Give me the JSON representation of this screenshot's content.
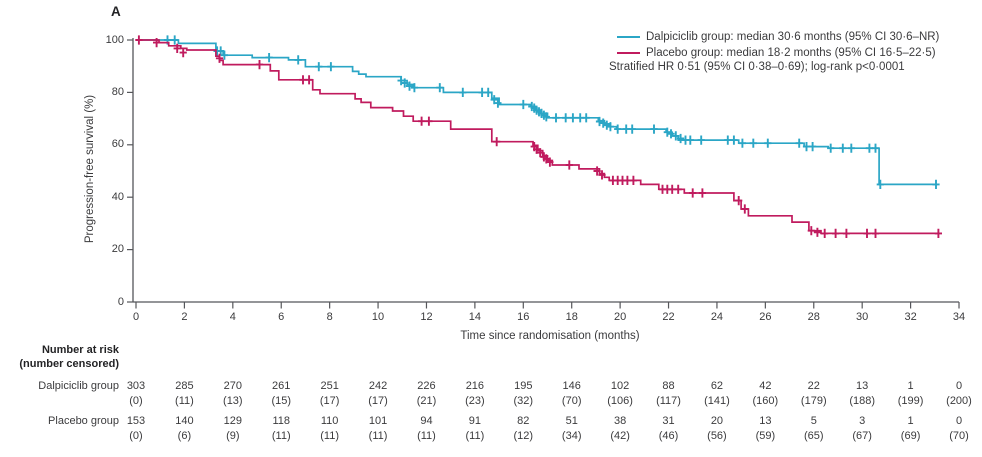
{
  "panel_label": "A",
  "figure": {
    "background": "#ffffff",
    "text_color": "#3b3b3d",
    "axis_color": "#55565a"
  },
  "legend": {
    "entries": [
      {
        "label": "Dalpiciclib group: median 30·6 months (95% CI 30·6–NR)",
        "color": "#2ba6c6"
      },
      {
        "label": "Placebo group: median 18·2 months (95% CI 16·5–22·5)",
        "color": "#c01b5e"
      }
    ],
    "note": "Stratified HR 0·51 (95% CI 0·38–0·69); log-rank p<0·0001"
  },
  "chart_data": {
    "type": "line",
    "subtype": "kaplan-meier-step",
    "title": "",
    "xlabel": "Time since randomisation (months)",
    "ylabel": "Progression-free survival (%)",
    "xlim": [
      0,
      34
    ],
    "ylim": [
      0,
      100
    ],
    "x_ticks": [
      0,
      2,
      4,
      6,
      8,
      10,
      12,
      14,
      16,
      18,
      20,
      22,
      24,
      26,
      28,
      30,
      32,
      34
    ],
    "y_ticks": [
      0,
      20,
      40,
      60,
      80,
      100
    ],
    "grid": false,
    "legend_position": "top-right",
    "series": [
      {
        "name": "Dalpiciclib group",
        "color": "#2ba6c6",
        "steps": [
          [
            0,
            100
          ],
          [
            1.75,
            98.7
          ],
          [
            3.3,
            95.8
          ],
          [
            3.6,
            94.2
          ],
          [
            4.8,
            93.3
          ],
          [
            6.3,
            92.4
          ],
          [
            7.0,
            89.8
          ],
          [
            8.95,
            88.0
          ],
          [
            9.2,
            87.0
          ],
          [
            9.5,
            86.0
          ],
          [
            10.95,
            84.5
          ],
          [
            11.2,
            83.0
          ],
          [
            11.45,
            81.8
          ],
          [
            12.7,
            80.0
          ],
          [
            14.7,
            77.8
          ],
          [
            15.0,
            75.4
          ],
          [
            16.3,
            74.6
          ],
          [
            16.5,
            73.2
          ],
          [
            16.7,
            72.0
          ],
          [
            17.0,
            70.3
          ],
          [
            19.1,
            69.2
          ],
          [
            19.35,
            68.0
          ],
          [
            19.6,
            66.9
          ],
          [
            19.85,
            66.0
          ],
          [
            21.9,
            64.8
          ],
          [
            22.15,
            63.4
          ],
          [
            22.4,
            61.8
          ],
          [
            24.9,
            60.6
          ],
          [
            27.6,
            59.3
          ],
          [
            28.6,
            58.7
          ],
          [
            30.7,
            44.9
          ]
        ],
        "end_time": 33.1,
        "censor_marks": [
          [
            1.3,
            100
          ],
          [
            1.6,
            100
          ],
          [
            3.35,
            95.8
          ],
          [
            3.5,
            95.8
          ],
          [
            3.65,
            94.2
          ],
          [
            5.5,
            93.3
          ],
          [
            6.7,
            92.4
          ],
          [
            7.55,
            89.8
          ],
          [
            8.05,
            89.8
          ],
          [
            10.95,
            84.5
          ],
          [
            11.1,
            83.6
          ],
          [
            11.3,
            82.4
          ],
          [
            11.5,
            81.8
          ],
          [
            12.55,
            81.8
          ],
          [
            13.5,
            80.0
          ],
          [
            14.3,
            80.0
          ],
          [
            14.55,
            80.0
          ],
          [
            14.8,
            77.2
          ],
          [
            14.95,
            75.9
          ],
          [
            16.0,
            75.4
          ],
          [
            16.35,
            74.6
          ],
          [
            16.45,
            74.0
          ],
          [
            16.55,
            73.2
          ],
          [
            16.65,
            72.6
          ],
          [
            16.75,
            72.0
          ],
          [
            16.85,
            71.3
          ],
          [
            16.95,
            70.7
          ],
          [
            17.35,
            70.3
          ],
          [
            17.75,
            70.3
          ],
          [
            18.05,
            70.3
          ],
          [
            18.35,
            70.3
          ],
          [
            18.6,
            70.3
          ],
          [
            19.15,
            68.9
          ],
          [
            19.3,
            68.3
          ],
          [
            19.45,
            67.5
          ],
          [
            19.6,
            66.9
          ],
          [
            19.9,
            66.0
          ],
          [
            20.25,
            66.0
          ],
          [
            20.5,
            66.0
          ],
          [
            21.4,
            66.0
          ],
          [
            21.95,
            64.8
          ],
          [
            22.1,
            64.2
          ],
          [
            22.3,
            63.4
          ],
          [
            22.5,
            62.4
          ],
          [
            22.7,
            61.8
          ],
          [
            22.9,
            61.8
          ],
          [
            23.35,
            61.8
          ],
          [
            24.45,
            61.8
          ],
          [
            24.7,
            61.8
          ],
          [
            25.05,
            60.6
          ],
          [
            25.5,
            60.6
          ],
          [
            26.1,
            60.6
          ],
          [
            27.4,
            60.6
          ],
          [
            27.7,
            59.3
          ],
          [
            27.95,
            59.3
          ],
          [
            28.7,
            58.7
          ],
          [
            29.2,
            58.7
          ],
          [
            29.55,
            58.7
          ],
          [
            30.3,
            58.7
          ],
          [
            30.55,
            58.7
          ],
          [
            30.75,
            44.9
          ],
          [
            33.05,
            44.9
          ]
        ]
      },
      {
        "name": "Placebo group",
        "color": "#c01b5e",
        "steps": [
          [
            0,
            100
          ],
          [
            0.95,
            99.0
          ],
          [
            1.35,
            97.8
          ],
          [
            1.85,
            96.8
          ],
          [
            2.1,
            96.2
          ],
          [
            3.3,
            93.8
          ],
          [
            3.45,
            92.2
          ],
          [
            3.6,
            90.6
          ],
          [
            5.55,
            88.2
          ],
          [
            5.9,
            84.8
          ],
          [
            7.3,
            81.0
          ],
          [
            7.6,
            79.5
          ],
          [
            9.05,
            77.5
          ],
          [
            9.3,
            76.2
          ],
          [
            9.7,
            74.2
          ],
          [
            10.6,
            72.9
          ],
          [
            11.05,
            70.9
          ],
          [
            11.45,
            69.0
          ],
          [
            13.0,
            66.0
          ],
          [
            14.7,
            61.2
          ],
          [
            16.4,
            59.8
          ],
          [
            16.6,
            57.8
          ],
          [
            16.8,
            55.8
          ],
          [
            17.0,
            54.0
          ],
          [
            17.2,
            52.3
          ],
          [
            18.3,
            50.8
          ],
          [
            19.15,
            49.0
          ],
          [
            19.35,
            47.6
          ],
          [
            19.55,
            46.4
          ],
          [
            20.85,
            44.9
          ],
          [
            21.6,
            43.0
          ],
          [
            22.65,
            41.6
          ],
          [
            24.7,
            38.7
          ],
          [
            25.0,
            35.5
          ],
          [
            25.3,
            32.9
          ],
          [
            27.1,
            30.5
          ],
          [
            27.8,
            27.2
          ],
          [
            28.3,
            26.2
          ]
        ],
        "end_time": 33.2,
        "censor_marks": [
          [
            0.12,
            100
          ],
          [
            0.85,
            99.0
          ],
          [
            1.7,
            96.8
          ],
          [
            1.95,
            95.2
          ],
          [
            3.45,
            93.0
          ],
          [
            5.1,
            90.6
          ],
          [
            6.9,
            84.8
          ],
          [
            7.15,
            84.8
          ],
          [
            11.8,
            69.0
          ],
          [
            12.1,
            69.0
          ],
          [
            14.9,
            61.2
          ],
          [
            16.45,
            59.3
          ],
          [
            16.55,
            58.3
          ],
          [
            16.7,
            57.0
          ],
          [
            16.85,
            55.4
          ],
          [
            16.95,
            54.6
          ],
          [
            17.1,
            53.4
          ],
          [
            17.9,
            52.3
          ],
          [
            19.05,
            50.0
          ],
          [
            19.25,
            48.5
          ],
          [
            19.7,
            46.4
          ],
          [
            19.9,
            46.4
          ],
          [
            20.1,
            46.4
          ],
          [
            20.3,
            46.4
          ],
          [
            20.55,
            46.4
          ],
          [
            21.75,
            43.0
          ],
          [
            21.95,
            43.0
          ],
          [
            22.15,
            43.0
          ],
          [
            22.4,
            43.0
          ],
          [
            23.0,
            41.6
          ],
          [
            23.4,
            41.6
          ],
          [
            24.9,
            38.7
          ],
          [
            25.15,
            35.5
          ],
          [
            27.9,
            27.2
          ],
          [
            28.15,
            26.6
          ],
          [
            28.45,
            26.2
          ],
          [
            28.9,
            26.2
          ],
          [
            29.35,
            26.2
          ],
          [
            30.2,
            26.2
          ],
          [
            30.55,
            26.2
          ],
          [
            33.15,
            26.2
          ]
        ]
      }
    ],
    "risk_table": {
      "header": [
        "Number at risk",
        "(number censored)"
      ],
      "timepoints": [
        0,
        2,
        4,
        6,
        8,
        10,
        12,
        14,
        16,
        18,
        20,
        22,
        24,
        26,
        28,
        30,
        32,
        34
      ],
      "rows": [
        {
          "label": "Dalpiciclib group",
          "at_risk": [
            303,
            285,
            270,
            261,
            251,
            242,
            226,
            216,
            195,
            146,
            102,
            88,
            62,
            42,
            22,
            13,
            1,
            0
          ],
          "censored": [
            "(0)",
            "(11)",
            "(13)",
            "(15)",
            "(17)",
            "(17)",
            "(21)",
            "(23)",
            "(32)",
            "(70)",
            "(106)",
            "(117)",
            "(141)",
            "(160)",
            "(179)",
            "(188)",
            "(199)",
            "(200)"
          ]
        },
        {
          "label": "Placebo group",
          "at_risk": [
            153,
            140,
            129,
            118,
            110,
            101,
            94,
            91,
            82,
            51,
            38,
            31,
            20,
            13,
            5,
            3,
            1,
            0
          ],
          "censored": [
            "(0)",
            "(6)",
            "(9)",
            "(11)",
            "(11)",
            "(11)",
            "(11)",
            "(11)",
            "(12)",
            "(34)",
            "(42)",
            "(46)",
            "(56)",
            "(59)",
            "(65)",
            "(67)",
            "(69)",
            "(70)"
          ]
        }
      ]
    }
  }
}
